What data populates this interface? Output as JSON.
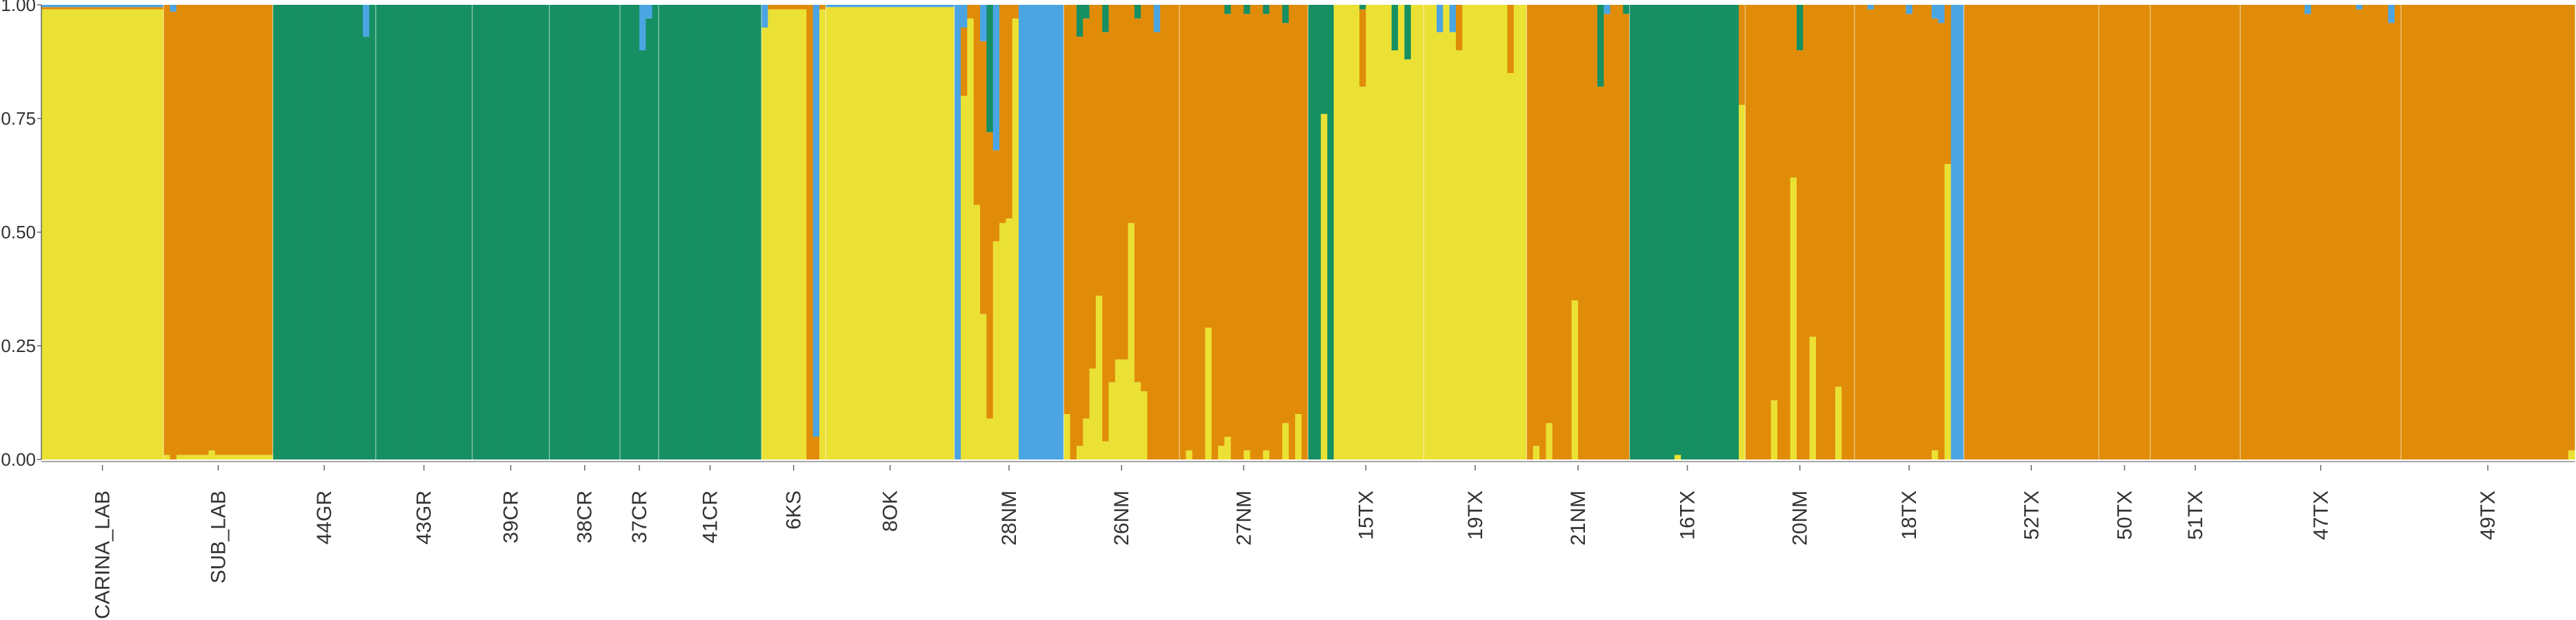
{
  "chart_data": {
    "type": "bar",
    "subtype": "stacked-admixture",
    "title": "",
    "xlabel": "",
    "ylabel": "",
    "ylim": [
      0,
      1
    ],
    "yticks": [
      "0.00",
      "0.25",
      "0.50",
      "0.75",
      "1.00"
    ],
    "ytick_values": [
      0,
      0.25,
      0.5,
      0.75,
      1.0
    ],
    "grid": false,
    "legend": "none",
    "cluster_colors": [
      "#EBE134",
      "#E08C09",
      "#168F62",
      "#4BA5E3"
    ],
    "populations": [
      {
        "label": "CARINA_LAB",
        "n": 19,
        "base": [
          0.99,
          0.005,
          0.0,
          0.005
        ]
      },
      {
        "label": "SUB_LAB",
        "n": 17,
        "base": [
          0.01,
          0.99,
          0.0,
          0.0
        ],
        "spikes": [
          [
            1,
            0.0,
            0.985,
            0.0,
            0.015
          ],
          [
            7,
            0.02,
            0.98,
            0.0,
            0.0
          ]
        ]
      },
      {
        "label": "44GR",
        "n": 16,
        "base": [
          0.0,
          0.0,
          1.0,
          0.0
        ],
        "spikes": [
          [
            14,
            0.0,
            0.0,
            0.93,
            0.07
          ]
        ]
      },
      {
        "label": "43GR",
        "n": 15,
        "base": [
          0.0,
          0.0,
          1.0,
          0.0
        ]
      },
      {
        "label": "39CR",
        "n": 12,
        "base": [
          0.0,
          0.0,
          1.0,
          0.0
        ]
      },
      {
        "label": "38CR",
        "n": 11,
        "base": [
          0.0,
          0.0,
          1.0,
          0.0
        ]
      },
      {
        "label": "37CR",
        "n": 6,
        "base": [
          0.0,
          0.0,
          1.0,
          0.0
        ],
        "spikes": [
          [
            3,
            0.0,
            0.0,
            0.9,
            0.1
          ],
          [
            4,
            0.0,
            0.0,
            0.97,
            0.03
          ]
        ]
      },
      {
        "label": "41CR",
        "n": 16,
        "base": [
          0.0,
          0.0,
          1.0,
          0.0
        ]
      },
      {
        "label": "6KS",
        "n": 10,
        "base": [
          0.99,
          0.01,
          0.0,
          0.0
        ],
        "spikes": [
          [
            0,
            0.95,
            0.0,
            0.0,
            0.05
          ],
          [
            7,
            0.0,
            1.0,
            0.0,
            0.0
          ],
          [
            8,
            0.0,
            0.05,
            0.0,
            0.95
          ]
        ]
      },
      {
        "label": "8OK",
        "n": 20,
        "base": [
          0.995,
          0.0,
          0.0,
          0.005
        ]
      },
      {
        "label": "28NM",
        "n": 17,
        "base": [
          0.97,
          0.03,
          0.0,
          0.0
        ],
        "spikes": [
          [
            0,
            0.0,
            0.0,
            0.0,
            1.0
          ],
          [
            1,
            0.8,
            0.15,
            0.0,
            0.05
          ],
          [
            3,
            0.56,
            0.44,
            0.0,
            0.0
          ],
          [
            4,
            0.32,
            0.6,
            0.0,
            0.08
          ],
          [
            5,
            0.09,
            0.63,
            0.28,
            0.0
          ],
          [
            6,
            0.48,
            0.2,
            0.0,
            0.32
          ],
          [
            7,
            0.52,
            0.48,
            0.0,
            0.0
          ],
          [
            8,
            0.53,
            0.47,
            0.0,
            0.0
          ],
          [
            10,
            0.0,
            0.0,
            0.0,
            1.0
          ],
          [
            11,
            0.0,
            0.0,
            0.0,
            1.0
          ],
          [
            12,
            0.0,
            0.0,
            0.0,
            1.0
          ],
          [
            13,
            0.0,
            0.0,
            0.0,
            1.0
          ],
          [
            14,
            0.0,
            0.0,
            0.0,
            1.0
          ],
          [
            15,
            0.0,
            0.0,
            0.0,
            1.0
          ],
          [
            16,
            0.0,
            0.0,
            0.0,
            1.0
          ]
        ]
      },
      {
        "label": "26NM",
        "n": 18,
        "base": [
          0.0,
          1.0,
          0.0,
          0.0
        ],
        "spikes": [
          [
            0,
            0.1,
            0.9,
            0.0,
            0.0
          ],
          [
            2,
            0.03,
            0.9,
            0.07,
            0.0
          ],
          [
            3,
            0.09,
            0.88,
            0.03,
            0.0
          ],
          [
            4,
            0.2,
            0.8,
            0.0,
            0.0
          ],
          [
            5,
            0.36,
            0.64,
            0.0,
            0.0
          ],
          [
            6,
            0.04,
            0.9,
            0.06,
            0.0
          ],
          [
            7,
            0.17,
            0.83,
            0.0,
            0.0
          ],
          [
            8,
            0.22,
            0.78,
            0.0,
            0.0
          ],
          [
            9,
            0.22,
            0.78,
            0.0,
            0.0
          ],
          [
            10,
            0.52,
            0.48,
            0.0,
            0.0
          ],
          [
            11,
            0.17,
            0.8,
            0.03,
            0.0
          ],
          [
            12,
            0.15,
            0.85,
            0.0,
            0.0
          ],
          [
            14,
            0.0,
            0.94,
            0.0,
            0.06
          ]
        ]
      },
      {
        "label": "27NM",
        "n": 20,
        "base": [
          0.0,
          1.0,
          0.0,
          0.0
        ],
        "spikes": [
          [
            1,
            0.02,
            0.98,
            0.0,
            0.0
          ],
          [
            4,
            0.29,
            0.71,
            0.0,
            0.0
          ],
          [
            6,
            0.03,
            0.97,
            0.0,
            0.0
          ],
          [
            7,
            0.05,
            0.93,
            0.02,
            0.0
          ],
          [
            10,
            0.02,
            0.96,
            0.02,
            0.0
          ],
          [
            13,
            0.02,
            0.96,
            0.02,
            0.0
          ],
          [
            16,
            0.08,
            0.88,
            0.04,
            0.0
          ],
          [
            18,
            0.1,
            0.9,
            0.0,
            0.0
          ]
        ]
      },
      {
        "label": "15TX",
        "n": 18,
        "base": [
          1.0,
          0.0,
          0.0,
          0.0
        ],
        "spikes": [
          [
            0,
            0.0,
            0.0,
            1.0,
            0.0
          ],
          [
            1,
            0.0,
            0.0,
            1.0,
            0.0
          ],
          [
            2,
            0.76,
            0.0,
            0.24,
            0.0
          ],
          [
            3,
            0.0,
            0.0,
            1.0,
            0.0
          ],
          [
            8,
            0.82,
            0.17,
            0.01,
            0.0
          ],
          [
            13,
            0.9,
            0.0,
            0.1,
            0.0
          ],
          [
            15,
            0.88,
            0.0,
            0.12,
            0.0
          ]
        ]
      },
      {
        "label": "19TX",
        "n": 16,
        "base": [
          1.0,
          0.0,
          0.0,
          0.0
        ],
        "spikes": [
          [
            2,
            0.94,
            0.0,
            0.0,
            0.06
          ],
          [
            4,
            0.94,
            0.0,
            0.0,
            0.06
          ],
          [
            5,
            0.9,
            0.1,
            0.0,
            0.0
          ],
          [
            13,
            0.85,
            0.15,
            0.0,
            0.0
          ]
        ]
      },
      {
        "label": "21NM",
        "n": 16,
        "base": [
          0.0,
          1.0,
          0.0,
          0.0
        ],
        "spikes": [
          [
            1,
            0.03,
            0.97,
            0.0,
            0.0
          ],
          [
            3,
            0.08,
            0.92,
            0.0,
            0.0
          ],
          [
            7,
            0.35,
            0.65,
            0.0,
            0.0
          ],
          [
            11,
            0.0,
            0.82,
            0.18,
            0.0
          ],
          [
            12,
            0.0,
            0.98,
            0.0,
            0.02
          ],
          [
            15,
            0.0,
            0.98,
            0.02,
            0.0
          ]
        ]
      },
      {
        "label": "16TX",
        "n": 18,
        "base": [
          0.0,
          0.0,
          1.0,
          0.0
        ],
        "spikes": [
          [
            7,
            0.01,
            0.0,
            0.99,
            0.0
          ],
          [
            17,
            0.78,
            0.22,
            0.0,
            0.0
          ]
        ]
      },
      {
        "label": "20NM",
        "n": 17,
        "base": [
          0.0,
          1.0,
          0.0,
          0.0
        ],
        "spikes": [
          [
            4,
            0.13,
            0.87,
            0.0,
            0.0
          ],
          [
            7,
            0.62,
            0.38,
            0.0,
            0.0
          ],
          [
            8,
            0.0,
            0.9,
            0.1,
            0.0
          ],
          [
            10,
            0.27,
            0.73,
            0.0,
            0.0
          ],
          [
            14,
            0.16,
            0.84,
            0.0,
            0.0
          ]
        ]
      },
      {
        "label": "18TX",
        "n": 17,
        "base": [
          0.0,
          1.0,
          0.0,
          0.0
        ],
        "spikes": [
          [
            2,
            0.0,
            0.99,
            0.0,
            0.01
          ],
          [
            8,
            0.0,
            0.98,
            0.0,
            0.02
          ],
          [
            12,
            0.02,
            0.95,
            0.0,
            0.03
          ],
          [
            13,
            0.0,
            0.96,
            0.0,
            0.04
          ],
          [
            14,
            0.65,
            0.35,
            0.0,
            0.0
          ],
          [
            15,
            0.0,
            0.0,
            0.0,
            1.0
          ],
          [
            16,
            0.0,
            0.0,
            0.0,
            1.0
          ]
        ]
      },
      {
        "label": "52TX",
        "n": 21,
        "base": [
          0.0,
          1.0,
          0.0,
          0.0
        ]
      },
      {
        "label": "50TX",
        "n": 8,
        "base": [
          0.0,
          1.0,
          0.0,
          0.0
        ]
      },
      {
        "label": "51TX",
        "n": 14,
        "base": [
          0.0,
          1.0,
          0.0,
          0.0
        ]
      },
      {
        "label": "47TX",
        "n": 25,
        "base": [
          0.0,
          1.0,
          0.0,
          0.0
        ],
        "spikes": [
          [
            10,
            0.0,
            0.98,
            0.0,
            0.02
          ],
          [
            18,
            0.0,
            0.99,
            0.0,
            0.01
          ],
          [
            23,
            0.0,
            0.96,
            0.0,
            0.04
          ]
        ]
      },
      {
        "label": "49TX",
        "n": 27,
        "base": [
          0.0,
          1.0,
          0.0,
          0.0
        ],
        "spikes": [
          [
            26,
            0.02,
            0.98,
            0.0,
            0.0
          ]
        ]
      }
    ]
  }
}
